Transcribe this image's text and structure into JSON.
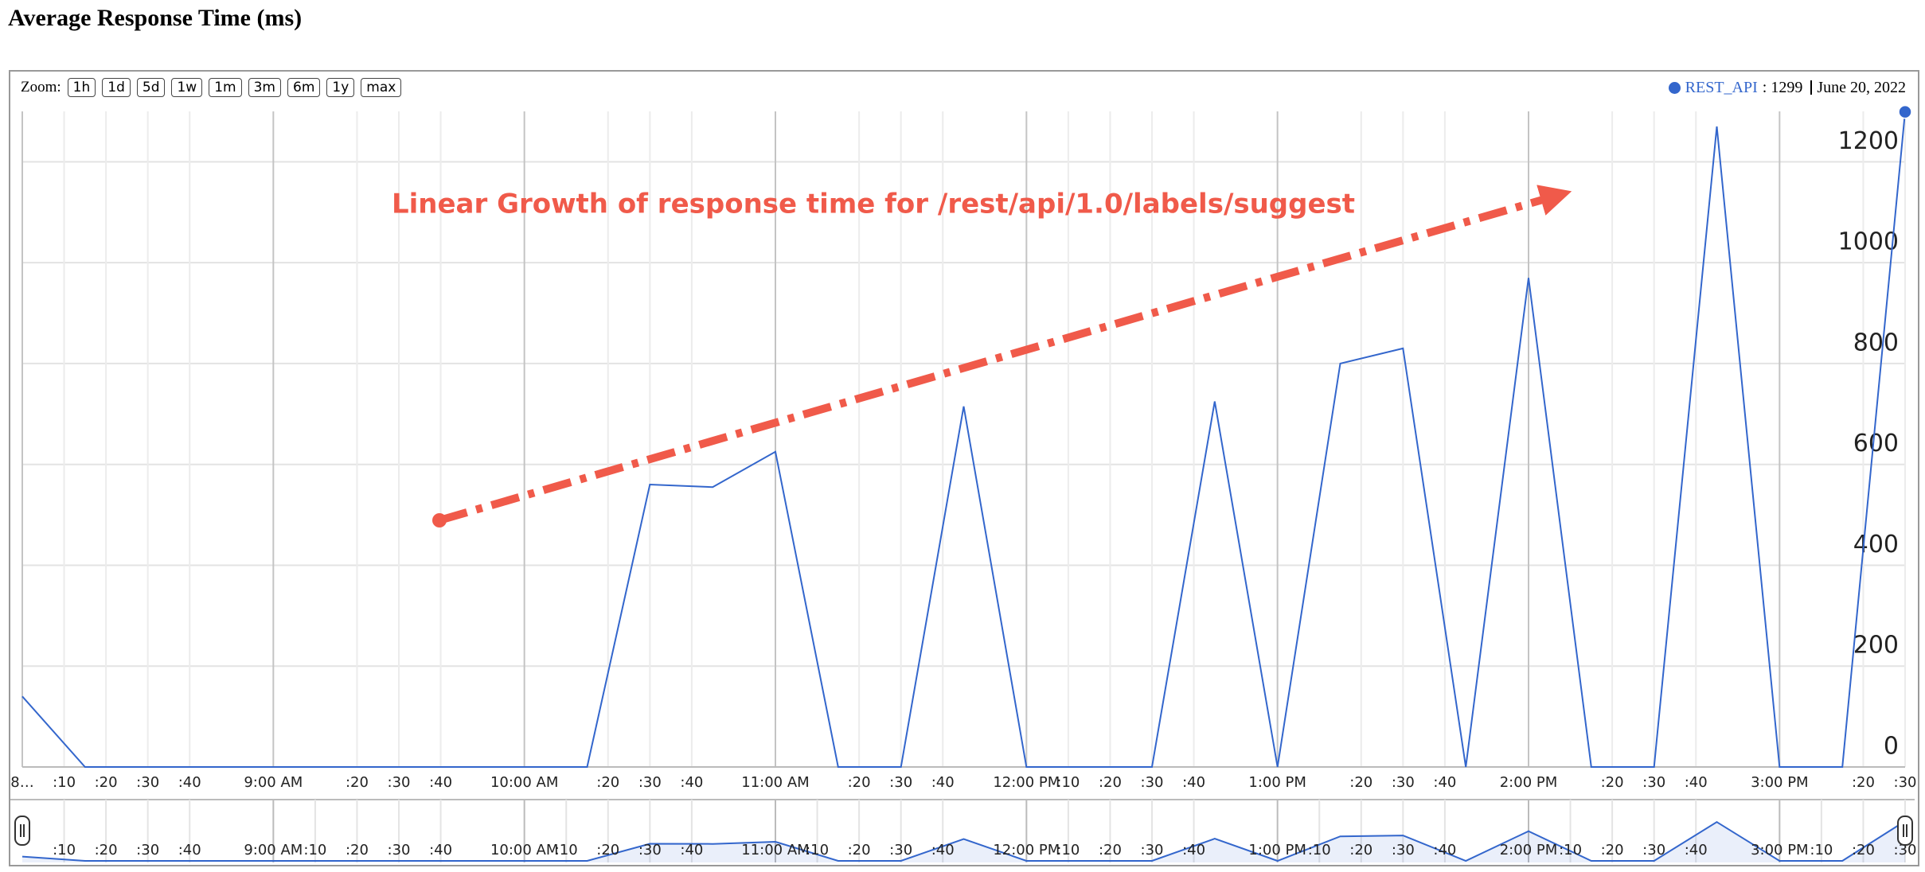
{
  "page_title": "Average Response Time (ms)",
  "chart_data": {
    "type": "line",
    "zoom": {
      "label": "Zoom:",
      "options": [
        "1h",
        "1d",
        "5d",
        "1w",
        "1m",
        "3m",
        "6m",
        "1y",
        "max"
      ]
    },
    "readout": {
      "value_label": ": 1299",
      "date": "June 20, 2022"
    },
    "annotation": "Linear Growth of response time for /rest/api/1.0/labels/suggest",
    "x": [
      8,
      8.25,
      8.5,
      8.75,
      9,
      9.25,
      9.5,
      9.75,
      10,
      10.25,
      10.5,
      10.75,
      11,
      11.25,
      11.5,
      11.75,
      12,
      12.25,
      12.5,
      12.75,
      13,
      13.25,
      13.5,
      13.75,
      14,
      14.25,
      14.5,
      14.75,
      15,
      15.25,
      15.5
    ],
    "series": [
      {
        "name": "REST_API",
        "color": "#3366cc",
        "values": [
          140,
          0,
          0,
          0,
          0,
          0,
          0,
          0,
          0,
          0,
          560,
          555,
          625,
          0,
          0,
          715,
          0,
          0,
          0,
          725,
          0,
          800,
          830,
          0,
          970,
          0,
          0,
          1270,
          0,
          0,
          1299
        ]
      }
    ],
    "xlim": [
      8,
      15.5
    ],
    "ylim": [
      0,
      1300
    ],
    "yticks": [
      0,
      200,
      400,
      600,
      800,
      1000,
      1200
    ],
    "xticks": [
      {
        "value": 8,
        "label": "8…"
      },
      {
        "value": 8.1667,
        "label": ":10"
      },
      {
        "value": 8.3333,
        "label": ":20"
      },
      {
        "value": 8.5,
        "label": ":30"
      },
      {
        "value": 8.6667,
        "label": ":40"
      },
      {
        "value": 9,
        "label": "9:00 AM"
      },
      {
        "value": 9.3333,
        "label": ":20"
      },
      {
        "value": 9.5,
        "label": ":30"
      },
      {
        "value": 9.6667,
        "label": ":40"
      },
      {
        "value": 10,
        "label": "10:00 AM"
      },
      {
        "value": 10.3333,
        "label": ":20"
      },
      {
        "value": 10.5,
        "label": ":30"
      },
      {
        "value": 10.6667,
        "label": ":40"
      },
      {
        "value": 11,
        "label": "11:00 AM"
      },
      {
        "value": 11.3333,
        "label": ":20"
      },
      {
        "value": 11.5,
        "label": ":30"
      },
      {
        "value": 11.6667,
        "label": ":40"
      },
      {
        "value": 12,
        "label": "12:00 PM"
      },
      {
        "value": 12.1667,
        "label": ":10"
      },
      {
        "value": 12.3333,
        "label": ":20"
      },
      {
        "value": 12.5,
        "label": ":30"
      },
      {
        "value": 12.6667,
        "label": ":40"
      },
      {
        "value": 13,
        "label": "1:00 PM"
      },
      {
        "value": 13.3333,
        "label": ":20"
      },
      {
        "value": 13.5,
        "label": ":30"
      },
      {
        "value": 13.6667,
        "label": ":40"
      },
      {
        "value": 14,
        "label": "2:00 PM"
      },
      {
        "value": 14.3333,
        "label": ":20"
      },
      {
        "value": 14.5,
        "label": ":30"
      },
      {
        "value": 14.6667,
        "label": ":40"
      },
      {
        "value": 15,
        "label": "3:00 PM"
      },
      {
        "value": 15.3333,
        "label": ":20"
      },
      {
        "value": 15.5,
        "label": ":30"
      }
    ],
    "navigator_xticks": [
      {
        "value": 8.1667,
        "label": ":10"
      },
      {
        "value": 8.3333,
        "label": ":20"
      },
      {
        "value": 8.5,
        "label": ":30"
      },
      {
        "value": 8.6667,
        "label": ":40"
      },
      {
        "value": 9,
        "label": "9:00 AM"
      },
      {
        "value": 9.1667,
        "label": ":10"
      },
      {
        "value": 9.3333,
        "label": ":20"
      },
      {
        "value": 9.5,
        "label": ":30"
      },
      {
        "value": 9.6667,
        "label": ":40"
      },
      {
        "value": 10,
        "label": "10:00 AM"
      },
      {
        "value": 10.1667,
        "label": ":10"
      },
      {
        "value": 10.3333,
        "label": ":20"
      },
      {
        "value": 10.5,
        "label": ":30"
      },
      {
        "value": 10.6667,
        "label": ":40"
      },
      {
        "value": 11,
        "label": "11:00 AM"
      },
      {
        "value": 11.1667,
        "label": ":10"
      },
      {
        "value": 11.3333,
        "label": ":20"
      },
      {
        "value": 11.5,
        "label": ":30"
      },
      {
        "value": 11.6667,
        "label": ":40"
      },
      {
        "value": 12,
        "label": "12:00 PM"
      },
      {
        "value": 12.1667,
        "label": ":10"
      },
      {
        "value": 12.3333,
        "label": ":20"
      },
      {
        "value": 12.5,
        "label": ":30"
      },
      {
        "value": 12.6667,
        "label": ":40"
      },
      {
        "value": 13,
        "label": "1:00 PM"
      },
      {
        "value": 13.1667,
        "label": ":10"
      },
      {
        "value": 13.3333,
        "label": ":20"
      },
      {
        "value": 13.5,
        "label": ":30"
      },
      {
        "value": 13.6667,
        "label": ":40"
      },
      {
        "value": 14,
        "label": "2:00 PM"
      },
      {
        "value": 14.1667,
        "label": ":10"
      },
      {
        "value": 14.3333,
        "label": ":20"
      },
      {
        "value": 14.5,
        "label": ":30"
      },
      {
        "value": 14.6667,
        "label": ":40"
      },
      {
        "value": 15,
        "label": "3:00 PM"
      },
      {
        "value": 15.1667,
        "label": ":10"
      },
      {
        "value": 15.3333,
        "label": ":20"
      },
      {
        "value": 15.5,
        "label": ":30"
      }
    ],
    "grid": true
  }
}
